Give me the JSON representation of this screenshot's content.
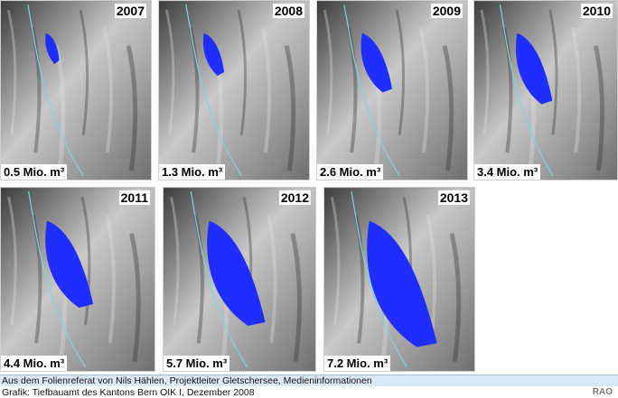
{
  "panels": [
    {
      "year": "2007",
      "volume": "0.5 Mio. m³",
      "extent": 0.06
    },
    {
      "year": "2008",
      "volume": "1.3 Mio. m³",
      "extent": 0.18
    },
    {
      "year": "2009",
      "volume": "2.6 Mio. m³",
      "extent": 0.35
    },
    {
      "year": "2010",
      "volume": "3.4 Mio. m³",
      "extent": 0.47
    },
    {
      "year": "2011",
      "volume": "4.4 Mio. m³",
      "extent": 0.61
    },
    {
      "year": "2012",
      "volume": "5.7 Mio. m³",
      "extent": 0.79
    },
    {
      "year": "2013",
      "volume": "7.2 Mio. m³",
      "extent": 1.0
    }
  ],
  "footer": {
    "line1": "Aus dem Folienreferat von Nils Hählen, Projektleiter Gletschersee, Medieninformationen",
    "line2": "Grafik: Tiefbauamt des Kantons Bern OIK I, Dezember 2008",
    "logo": "RAO"
  },
  "colors": {
    "lake": "#1f2dff",
    "terrain_light": "#c9c9c9",
    "terrain_dark": "#3c3c3c",
    "river": "#7fd6d6",
    "footer_band": "#dbe9f5"
  }
}
